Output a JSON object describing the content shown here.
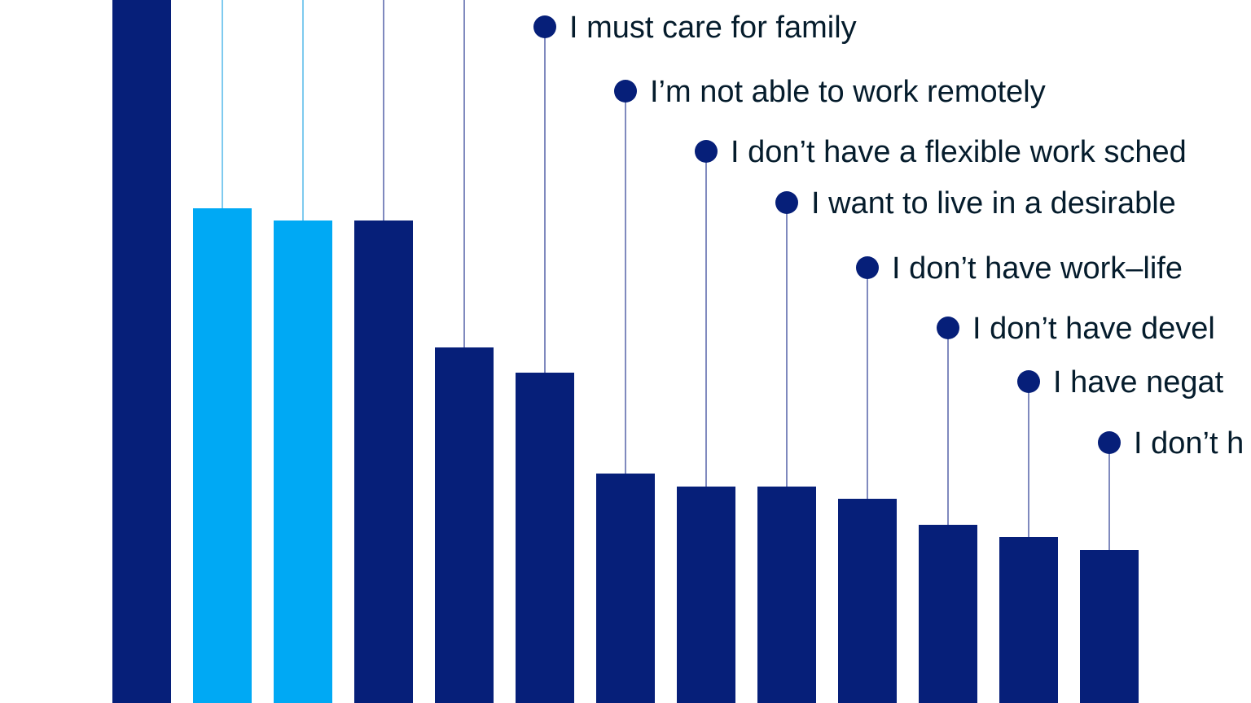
{
  "chart_data": {
    "type": "bar",
    "categories": [
      null,
      null,
      null,
      null,
      null,
      "I must care for family",
      "I’m not able to work remotely",
      "I don’t have a flexible work sched",
      "I want to live in a desirable",
      "I don’t have work–life",
      "I don’t have devel",
      "I have negat",
      "I don’t h"
    ],
    "values": [
      900,
      608,
      593,
      593,
      437,
      406,
      282,
      266,
      266,
      251,
      219,
      204,
      188
    ],
    "colors": [
      "#061f79",
      "#00a9f4",
      "#00a9f4",
      "#061f79",
      "#061f79",
      "#061f79",
      "#061f79",
      "#061f79",
      "#061f79",
      "#061f79",
      "#061f79",
      "#061f79",
      "#061f79"
    ],
    "ylim": [
      0,
      864
    ]
  }
}
